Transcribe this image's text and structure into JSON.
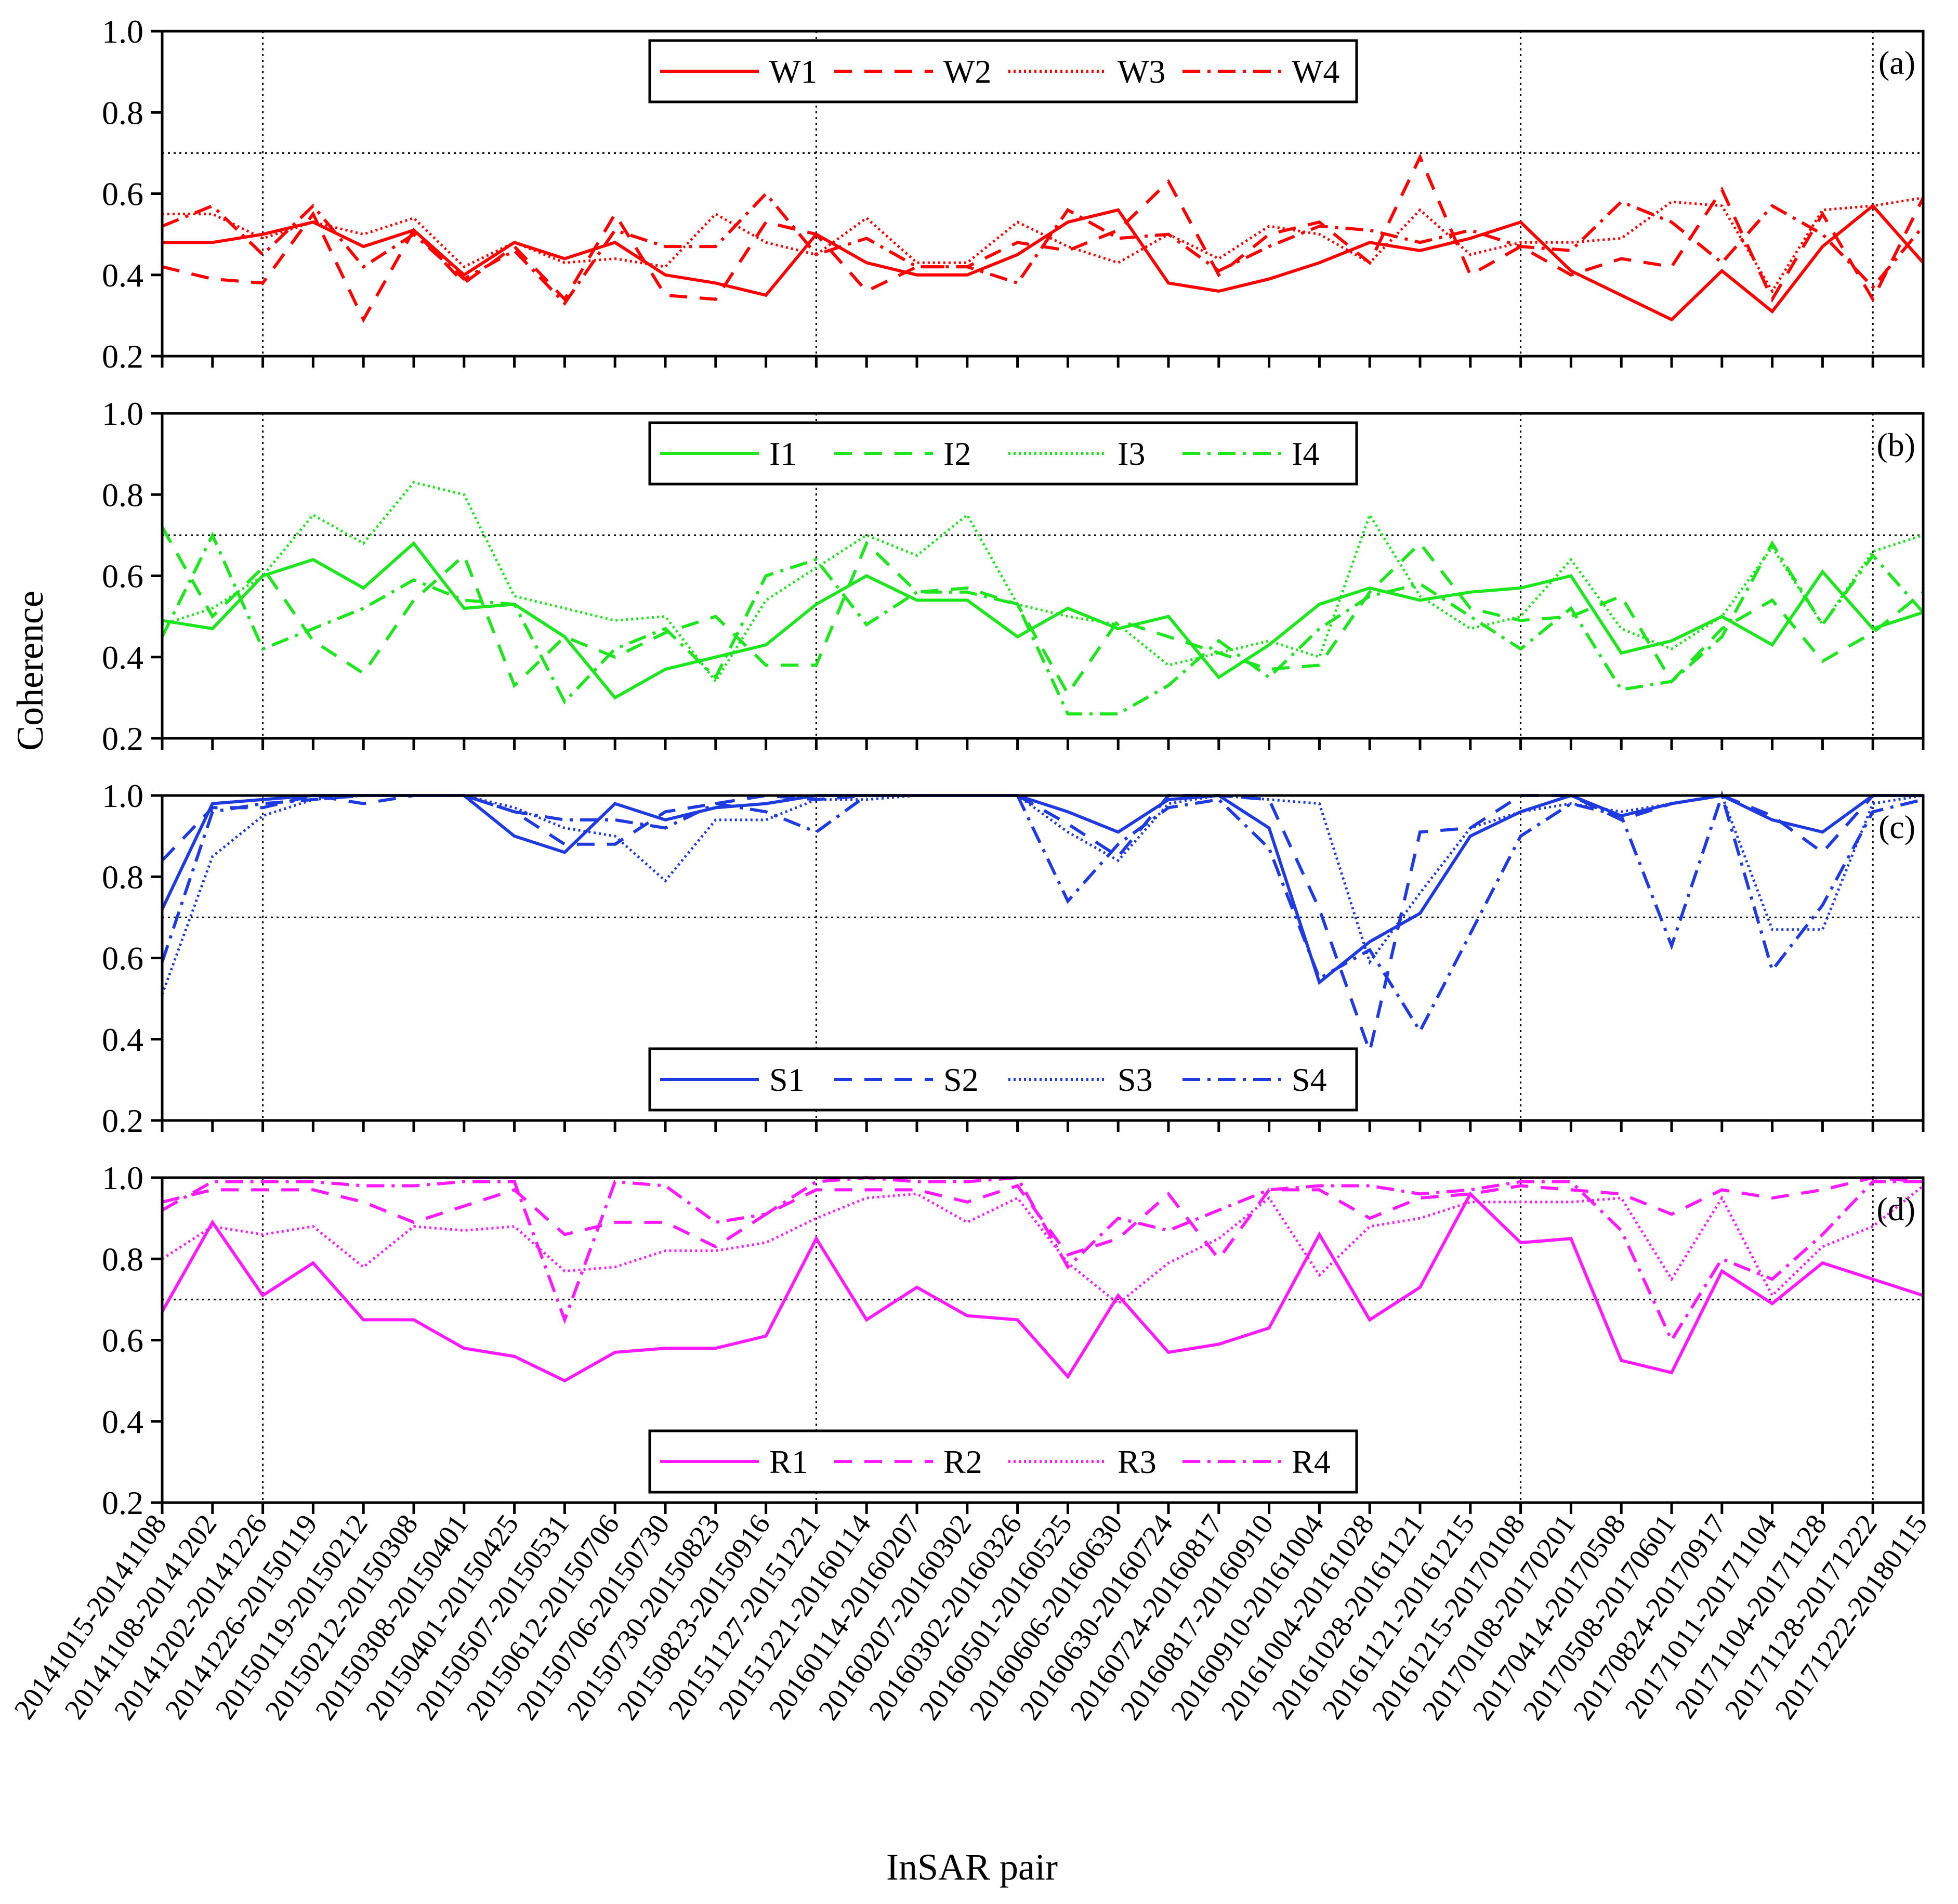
{
  "chart_data": {
    "type": "line",
    "xlabel": "InSAR pair",
    "ylabel": "Coherence",
    "ylim": [
      0.2,
      1.0
    ],
    "yticks": [
      "0.2",
      "0.4",
      "0.6",
      "0.8",
      "1.0"
    ],
    "threshold": 0.7,
    "season_boundaries": [
      "20141202-20141226",
      "20151127-20151221",
      "20161215-20170108",
      "20171128-20171222"
    ],
    "x": [
      "20141015-20141108",
      "20141108-20141202",
      "20141202-20141226",
      "20141226-20150119",
      "20150119-20150212",
      "20150212-20150308",
      "20150308-20150401",
      "20150401-20150425",
      "20150507-20150531",
      "20150612-20150706",
      "20150706-20150730",
      "20150730-20150823",
      "20150823-20150916",
      "20151127-20151221",
      "20151221-20160114",
      "20160114-20160207",
      "20160207-20160302",
      "20160302-20160326",
      "20160501-20160525",
      "20160606-20160630",
      "20160630-20160724",
      "20160724-20160817",
      "20160817-20160910",
      "20160910-20161004",
      "20161004-20161028",
      "20161028-20161121",
      "20161121-20161215",
      "20161215-20170108",
      "20170108-20170201",
      "20170414-20170508",
      "20170508-20170601",
      "20170824-20170917",
      "20171011-20171104",
      "20171104-20171128",
      "20171128-20171222",
      "20171222-20180115"
    ],
    "panels": [
      {
        "label": "(a)",
        "color": "#ff0000",
        "legend_position": "top",
        "series": [
          {
            "name": "W1",
            "values": [
              0.48,
              0.48,
              0.5,
              0.53,
              0.47,
              0.51,
              0.4,
              0.48,
              0.44,
              0.48,
              0.4,
              0.38,
              0.35,
              0.5,
              0.43,
              0.4,
              0.4,
              0.45,
              0.53,
              0.56,
              0.38,
              0.36,
              0.39,
              0.43,
              0.48,
              0.46,
              0.49,
              0.53,
              0.41,
              0.35,
              0.29,
              0.41,
              0.31,
              0.47,
              0.57,
              0.43
            ]
          },
          {
            "name": "W2",
            "values": [
              0.42,
              0.39,
              0.38,
              0.55,
              0.29,
              0.51,
              0.38,
              0.47,
              0.34,
              0.55,
              0.35,
              0.34,
              0.53,
              0.5,
              0.36,
              0.42,
              0.42,
              0.48,
              0.46,
              0.51,
              0.63,
              0.4,
              0.5,
              0.53,
              0.43,
              0.69,
              0.4,
              0.47,
              0.4,
              0.44,
              0.42,
              0.61,
              0.34,
              0.55,
              0.34,
              0.59
            ]
          },
          {
            "name": "W3",
            "values": [
              0.55,
              0.55,
              0.49,
              0.53,
              0.5,
              0.54,
              0.42,
              0.48,
              0.43,
              0.44,
              0.42,
              0.55,
              0.48,
              0.45,
              0.54,
              0.43,
              0.43,
              0.53,
              0.47,
              0.43,
              0.5,
              0.44,
              0.52,
              0.5,
              0.43,
              0.56,
              0.45,
              0.48,
              0.48,
              0.49,
              0.58,
              0.57,
              0.36,
              0.56,
              0.57,
              0.59
            ]
          },
          {
            "name": "W4",
            "values": [
              0.52,
              0.57,
              0.45,
              0.57,
              0.42,
              0.5,
              0.39,
              0.46,
              0.33,
              0.51,
              0.47,
              0.47,
              0.6,
              0.45,
              0.49,
              0.42,
              0.42,
              0.38,
              0.56,
              0.49,
              0.5,
              0.41,
              0.47,
              0.52,
              0.51,
              0.48,
              0.51,
              0.47,
              0.46,
              0.58,
              0.53,
              0.43,
              0.57,
              0.5,
              0.37,
              0.52
            ]
          }
        ]
      },
      {
        "label": "(b)",
        "color": "#1ee61e",
        "legend_position": "top",
        "series": [
          {
            "name": "I1",
            "values": [
              0.49,
              0.47,
              0.6,
              0.64,
              0.57,
              0.68,
              0.52,
              0.53,
              0.45,
              0.3,
              0.37,
              0.4,
              0.43,
              0.53,
              0.6,
              0.54,
              0.54,
              0.45,
              0.52,
              0.47,
              0.5,
              0.35,
              0.43,
              0.53,
              0.57,
              0.54,
              0.56,
              0.57,
              0.6,
              0.41,
              0.44,
              0.5,
              0.43,
              0.61,
              0.47,
              0.51
            ]
          },
          {
            "name": "I2",
            "values": [
              0.72,
              0.5,
              0.62,
              0.44,
              0.36,
              0.54,
              0.65,
              0.33,
              0.45,
              0.4,
              0.46,
              0.5,
              0.38,
              0.38,
              0.68,
              0.56,
              0.57,
              0.53,
              0.31,
              0.49,
              0.45,
              0.41,
              0.37,
              0.38,
              0.56,
              0.68,
              0.52,
              0.49,
              0.5,
              0.55,
              0.34,
              0.47,
              0.54,
              0.39,
              0.46,
              0.56
            ]
          },
          {
            "name": "I3",
            "values": [
              0.48,
              0.52,
              0.6,
              0.75,
              0.68,
              0.83,
              0.8,
              0.55,
              0.52,
              0.49,
              0.5,
              0.34,
              0.54,
              0.62,
              0.7,
              0.65,
              0.75,
              0.53,
              0.5,
              0.48,
              0.38,
              0.41,
              0.44,
              0.4,
              0.75,
              0.55,
              0.47,
              0.5,
              0.64,
              0.47,
              0.42,
              0.5,
              0.67,
              0.48,
              0.66,
              0.7
            ]
          },
          {
            "name": "I4",
            "values": [
              0.45,
              0.7,
              0.42,
              0.47,
              0.52,
              0.59,
              0.54,
              0.53,
              0.29,
              0.42,
              0.47,
              0.35,
              0.6,
              0.64,
              0.48,
              0.56,
              0.56,
              0.53,
              0.26,
              0.26,
              0.33,
              0.44,
              0.35,
              0.47,
              0.55,
              0.58,
              0.5,
              0.42,
              0.52,
              0.32,
              0.34,
              0.45,
              0.68,
              0.48,
              0.65,
              0.51
            ]
          }
        ]
      },
      {
        "label": "(c)",
        "color": "#1f3be0",
        "legend_position": "bottom",
        "series": [
          {
            "name": "S1",
            "values": [
              0.72,
              0.98,
              0.99,
              1.0,
              1.0,
              1.0,
              1.0,
              0.9,
              0.86,
              0.98,
              0.94,
              0.97,
              0.98,
              1.0,
              1.0,
              1.0,
              1.0,
              1.0,
              0.96,
              0.91,
              0.99,
              1.0,
              0.92,
              0.54,
              0.64,
              0.71,
              0.9,
              0.96,
              1.0,
              0.95,
              0.98,
              1.0,
              0.94,
              0.91,
              1.0,
              1.0
            ]
          },
          {
            "name": "S2",
            "values": [
              0.84,
              0.97,
              0.97,
              1.0,
              0.98,
              1.0,
              1.0,
              0.96,
              0.88,
              0.88,
              0.96,
              0.98,
              1.0,
              0.99,
              1.0,
              1.0,
              1.0,
              1.0,
              0.93,
              0.85,
              1.0,
              1.0,
              0.99,
              0.72,
              0.37,
              0.91,
              0.92,
              1.0,
              1.0,
              0.94,
              0.98,
              1.0,
              0.95,
              0.86,
              1.0,
              1.0
            ]
          },
          {
            "name": "S3",
            "values": [
              0.51,
              0.85,
              0.95,
              0.99,
              1.0,
              1.0,
              1.0,
              0.97,
              0.92,
              0.9,
              0.79,
              0.94,
              0.94,
              0.99,
              0.99,
              1.0,
              1.0,
              1.0,
              0.91,
              0.84,
              0.98,
              1.0,
              0.99,
              0.98,
              0.59,
              0.76,
              0.92,
              0.96,
              0.98,
              0.96,
              0.98,
              1.0,
              0.67,
              0.67,
              0.98,
              1.0
            ]
          },
          {
            "name": "S4",
            "values": [
              0.59,
              0.96,
              0.98,
              0.99,
              1.0,
              1.0,
              1.0,
              0.96,
              0.94,
              0.94,
              0.92,
              0.98,
              0.96,
              0.91,
              1.0,
              1.0,
              1.0,
              1.0,
              0.74,
              0.88,
              0.97,
              0.99,
              0.87,
              0.55,
              0.62,
              0.42,
              0.66,
              0.9,
              0.98,
              0.95,
              0.63,
              1.0,
              0.57,
              0.73,
              0.96,
              0.99
            ]
          }
        ]
      },
      {
        "label": "(d)",
        "color": "#ff1aff",
        "legend_position": "bottom",
        "series": [
          {
            "name": "R1",
            "values": [
              0.67,
              0.89,
              0.71,
              0.79,
              0.65,
              0.65,
              0.58,
              0.56,
              0.5,
              0.57,
              0.58,
              0.58,
              0.61,
              0.85,
              0.65,
              0.73,
              0.66,
              0.65,
              0.51,
              0.71,
              0.57,
              0.59,
              0.63,
              0.86,
              0.65,
              0.73,
              0.96,
              0.84,
              0.85,
              0.55,
              0.52,
              0.77,
              0.69,
              0.79,
              0.75,
              0.71
            ]
          },
          {
            "name": "R2",
            "values": [
              0.94,
              0.97,
              0.97,
              0.97,
              0.94,
              0.89,
              0.93,
              0.97,
              0.86,
              0.89,
              0.89,
              0.83,
              0.91,
              0.97,
              0.97,
              0.97,
              0.94,
              0.98,
              0.81,
              0.85,
              0.96,
              0.8,
              0.97,
              0.97,
              0.9,
              0.95,
              0.96,
              0.98,
              0.97,
              0.96,
              0.91,
              0.97,
              0.95,
              0.97,
              1.0,
              0.99
            ]
          },
          {
            "name": "R3",
            "values": [
              0.8,
              0.88,
              0.86,
              0.88,
              0.78,
              0.88,
              0.87,
              0.88,
              0.77,
              0.78,
              0.82,
              0.82,
              0.84,
              0.9,
              0.95,
              0.96,
              0.89,
              0.95,
              0.79,
              0.69,
              0.79,
              0.85,
              0.95,
              0.76,
              0.88,
              0.9,
              0.94,
              0.94,
              0.94,
              0.95,
              0.75,
              0.95,
              0.71,
              0.83,
              0.88,
              0.98
            ]
          },
          {
            "name": "R4",
            "values": [
              0.92,
              0.99,
              0.99,
              0.99,
              0.98,
              0.98,
              0.99,
              0.99,
              0.65,
              0.99,
              0.98,
              0.89,
              0.91,
              0.99,
              1.0,
              0.99,
              0.99,
              1.0,
              0.78,
              0.9,
              0.87,
              0.92,
              0.97,
              0.98,
              0.98,
              0.96,
              0.97,
              0.99,
              0.99,
              0.87,
              0.6,
              0.8,
              0.75,
              0.86,
              0.99,
              0.99
            ]
          }
        ]
      }
    ]
  }
}
